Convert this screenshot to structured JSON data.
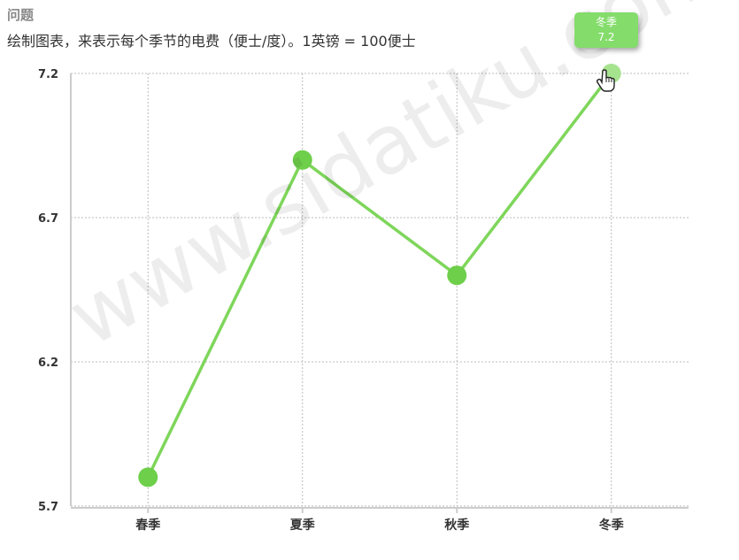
{
  "question": {
    "label": "问题",
    "text": "绘制图表，来表示每个季节的电费（便士/度）。1英镑 = 100便士"
  },
  "tooltip": {
    "category": "冬季",
    "value": "7.2"
  },
  "watermark": "www.sidatiku.com",
  "colors": {
    "line": "#7ed65a",
    "marker": "#6ecf4a",
    "hover_marker": "#a6e38f",
    "grid": "#bbbbbb",
    "axis": "#cccccc"
  },
  "chart_data": {
    "type": "line",
    "title": "",
    "xlabel": "",
    "ylabel": "",
    "categories": [
      "春季",
      "夏季",
      "秋季",
      "冬季"
    ],
    "values": [
      5.8,
      6.9,
      6.5,
      7.2
    ],
    "ylim": [
      5.7,
      7.2
    ],
    "yticks": [
      "7.2",
      "6.7",
      "6.2",
      "5.7"
    ],
    "grid": true,
    "legend": "none"
  }
}
